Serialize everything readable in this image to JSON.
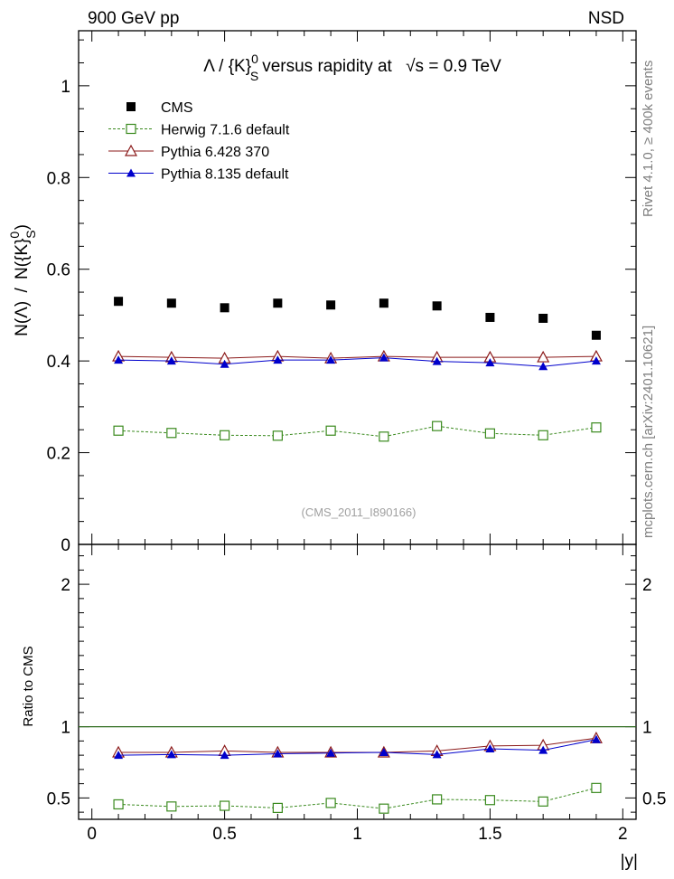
{
  "header": {
    "left": "900 GeV pp",
    "right": "NSD"
  },
  "side_labels": {
    "rivet": "Rivet 4.1.0, ≥ 400k events",
    "mcplots": "mcplots.cern.ch [arXiv:2401.10621]"
  },
  "colors": {
    "cms": "#000000",
    "herwig": "#3a8a1e",
    "pythia6": "#8b1a1a",
    "pythia8": "#0000cc",
    "ref_line": "#2e6b1e"
  },
  "chart_data": [
    {
      "type": "scatter",
      "title_parts": {
        "lambda": "Λ",
        "slash": "/",
        "k": "{K}",
        "sup": "0",
        "sub": "S",
        "rest": "versus rapidity at",
        "sqrt_s": "√s",
        "energy": "= 0.9 TeV"
      },
      "ylabel_parts": {
        "num": "N(Λ)",
        "sep": "/",
        "den": "N({K}",
        "sup": "0",
        "sub": "S",
        "close": ")"
      },
      "watermark": "(CMS_2011_I890166)",
      "xlim": [
        -0.05,
        2.05
      ],
      "ylim": [
        0,
        1.12
      ],
      "yticks": [
        {
          "value": 0,
          "label": "0"
        },
        {
          "value": 0.2,
          "label": "0.2"
        },
        {
          "value": 0.4,
          "label": "0.4"
        },
        {
          "value": 0.6,
          "label": "0.6"
        },
        {
          "value": 0.8,
          "label": "0.8"
        },
        {
          "value": 1,
          "label": "1"
        }
      ],
      "x": [
        0.1,
        0.3,
        0.5,
        0.7,
        0.9,
        1.1,
        1.3,
        1.5,
        1.7,
        1.9
      ],
      "series": [
        {
          "name": "CMS",
          "key": "cms",
          "values": [
            0.53,
            0.526,
            0.516,
            0.526,
            0.522,
            0.526,
            0.52,
            0.495,
            0.493,
            0.456
          ]
        },
        {
          "name": "Herwig 7.1.6 default",
          "key": "herwig",
          "values": [
            0.248,
            0.243,
            0.238,
            0.237,
            0.248,
            0.235,
            0.258,
            0.242,
            0.238,
            0.255
          ]
        },
        {
          "name": "Pythia 6.428 370",
          "key": "pythia6",
          "values": [
            0.41,
            0.408,
            0.406,
            0.41,
            0.406,
            0.41,
            0.408,
            0.408,
            0.408,
            0.41
          ]
        },
        {
          "name": "Pythia 8.135 default",
          "key": "pythia8",
          "values": [
            0.402,
            0.4,
            0.393,
            0.402,
            0.402,
            0.407,
            0.399,
            0.396,
            0.388,
            0.4
          ]
        }
      ]
    },
    {
      "type": "line",
      "ylabel": "Ratio to CMS",
      "xlabel": "|y|",
      "xlim": [
        -0.05,
        2.05
      ],
      "ylim": [
        0.35,
        2.28
      ],
      "xticks": [
        {
          "value": 0,
          "label": "0"
        },
        {
          "value": 0.5,
          "label": "0.5"
        },
        {
          "value": 1,
          "label": "1"
        },
        {
          "value": 1.5,
          "label": "1.5"
        },
        {
          "value": 2,
          "label": "2"
        }
      ],
      "yticks": [
        {
          "value": 0.5,
          "label": "0.5"
        },
        {
          "value": 1,
          "label": "1"
        },
        {
          "value": 2,
          "label": "2"
        }
      ],
      "x": [
        0.1,
        0.3,
        0.5,
        0.7,
        0.9,
        1.1,
        1.3,
        1.5,
        1.7,
        1.9
      ],
      "series": [
        {
          "name": "Herwig 7.1.6 default",
          "key": "herwig",
          "values": [
            0.455,
            0.44,
            0.445,
            0.43,
            0.465,
            0.425,
            0.49,
            0.485,
            0.475,
            0.57
          ]
        },
        {
          "name": "Pythia 6.428 370",
          "key": "pythia6",
          "values": [
            0.82,
            0.82,
            0.83,
            0.82,
            0.82,
            0.82,
            0.83,
            0.865,
            0.87,
            0.92
          ]
        },
        {
          "name": "Pythia 8.135 default",
          "key": "pythia8",
          "values": [
            0.8,
            0.805,
            0.8,
            0.81,
            0.815,
            0.82,
            0.805,
            0.845,
            0.835,
            0.91
          ]
        }
      ]
    }
  ]
}
